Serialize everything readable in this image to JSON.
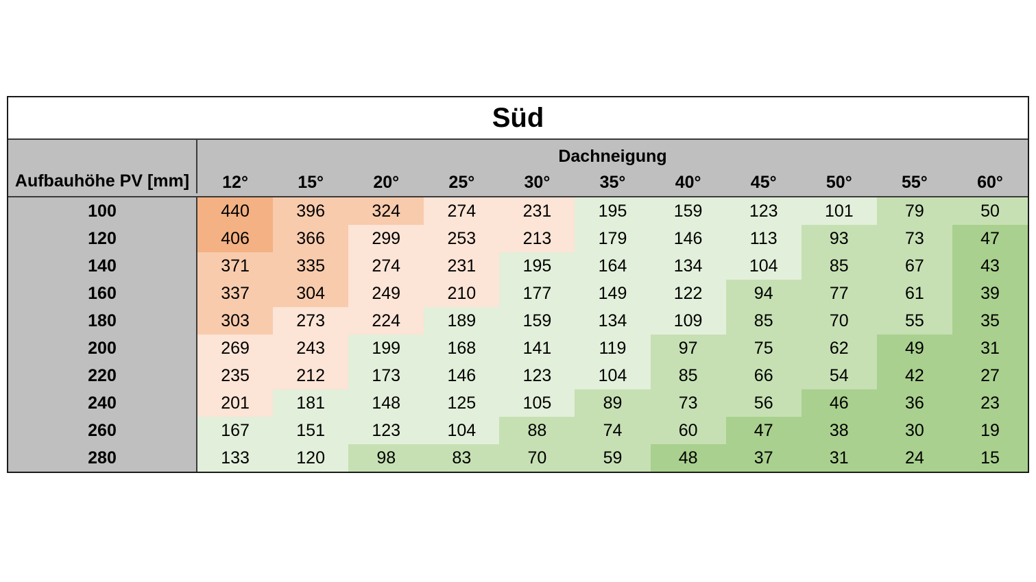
{
  "title": "Süd",
  "row_header_label": "Aufbauhöhe PV [mm]",
  "column_group_label": "Dachneigung",
  "palette": {
    "orange_dark": "#f4b183",
    "orange_mid": "#f8cbad",
    "orange_light": "#fce4d6",
    "green_lightest": "#e2efda",
    "green_light": "#c6e0b4",
    "green_mid": "#a9d08e",
    "header_gray": "#bfbfbf"
  },
  "chart_data": {
    "type": "table",
    "title": "Süd",
    "xlabel": "Dachneigung",
    "ylabel": "Aufbauhöhe PV [mm]",
    "columns": [
      "12°",
      "15°",
      "20°",
      "25°",
      "30°",
      "35°",
      "40°",
      "45°",
      "50°",
      "55°",
      "60°"
    ],
    "rows": [
      "100",
      "120",
      "140",
      "160",
      "180",
      "200",
      "220",
      "240",
      "260",
      "280"
    ],
    "values": [
      [
        440,
        396,
        324,
        274,
        231,
        195,
        159,
        123,
        101,
        79,
        50
      ],
      [
        406,
        366,
        299,
        253,
        213,
        179,
        146,
        113,
        93,
        73,
        47
      ],
      [
        371,
        335,
        274,
        231,
        195,
        164,
        134,
        104,
        85,
        67,
        43
      ],
      [
        337,
        304,
        249,
        210,
        177,
        149,
        122,
        94,
        77,
        61,
        39
      ],
      [
        303,
        273,
        224,
        189,
        159,
        134,
        109,
        85,
        70,
        55,
        35
      ],
      [
        269,
        243,
        199,
        168,
        141,
        119,
        97,
        75,
        62,
        49,
        31
      ],
      [
        235,
        212,
        173,
        146,
        123,
        104,
        85,
        66,
        54,
        42,
        27
      ],
      [
        201,
        181,
        148,
        125,
        105,
        89,
        73,
        56,
        46,
        36,
        23
      ],
      [
        167,
        151,
        123,
        104,
        88,
        74,
        60,
        47,
        38,
        30,
        19
      ],
      [
        133,
        120,
        98,
        83,
        70,
        59,
        48,
        37,
        31,
        24,
        15
      ]
    ]
  }
}
